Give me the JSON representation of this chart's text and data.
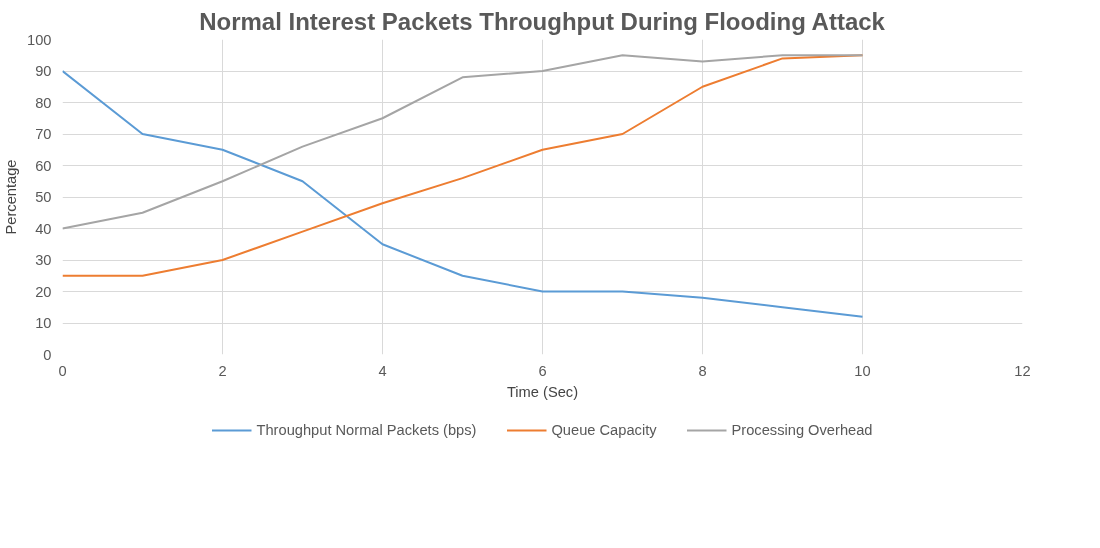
{
  "chart_data": {
    "type": "line",
    "title": "Normal Interest Packets Throughput During Flooding Attack",
    "xlabel": "Time (Sec)",
    "ylabel": "Percentage",
    "x": [
      0,
      1,
      2,
      3,
      4,
      5,
      6,
      7,
      8,
      9,
      10
    ],
    "series": [
      {
        "name": "Throughput Normal Packets (bps)",
        "color": "#5b9bd5",
        "values": [
          90,
          70,
          65,
          55,
          35,
          25,
          20,
          20,
          18,
          15,
          12
        ]
      },
      {
        "name": "Queue Capacity",
        "color": "#ed7d31",
        "values": [
          25,
          25,
          30,
          39,
          48,
          56,
          65,
          70,
          85,
          94,
          95
        ]
      },
      {
        "name": "Processing Overhead",
        "color": "#a5a5a5",
        "values": [
          40,
          45,
          55,
          66,
          75,
          88,
          90,
          95,
          93,
          95,
          95
        ]
      }
    ],
    "xlim": [
      0,
      12
    ],
    "xticks": [
      0,
      2,
      4,
      6,
      8,
      10,
      12
    ],
    "ylim": [
      0,
      100
    ],
    "yticks": [
      0,
      10,
      20,
      30,
      40,
      50,
      60,
      70,
      80,
      90,
      100
    ],
    "grid": true,
    "legend": "bottom",
    "marker": "none",
    "line_style": "solid"
  }
}
